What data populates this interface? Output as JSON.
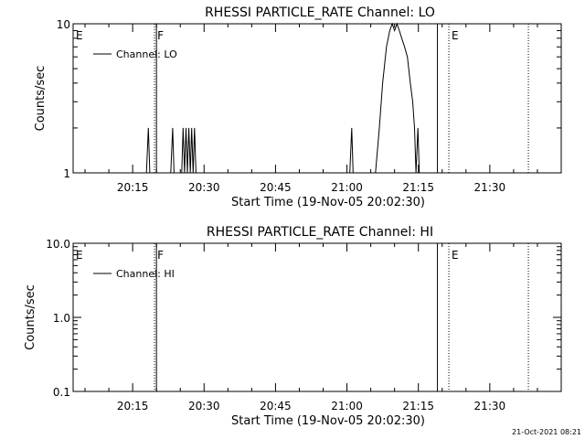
{
  "timestamp": "21-Oct-2021 08:21",
  "chart_data": [
    {
      "type": "line",
      "title": "RHESSI PARTICLE_RATE Channel: LO",
      "xlabel": "Start Time (19-Nov-05 20:02:30)",
      "ylabel": "Counts/sec",
      "x_unit": "minutes since 20:02:30",
      "xlim": [
        0,
        102.5
      ],
      "ylim": [
        1,
        10
      ],
      "yscale": "log",
      "x_ticks": [
        {
          "x": 12.5,
          "label": "20:15"
        },
        {
          "x": 27.5,
          "label": "20:30"
        },
        {
          "x": 42.5,
          "label": "20:45"
        },
        {
          "x": 57.5,
          "label": "21:00"
        },
        {
          "x": 72.5,
          "label": "21:15"
        },
        {
          "x": 87.5,
          "label": "21:30"
        }
      ],
      "y_ticks": [
        {
          "y": 1,
          "label": "1"
        },
        {
          "y": 10,
          "label": "10"
        }
      ],
      "legend": {
        "label": "Channel: LO",
        "position": "top-left"
      },
      "markers": [
        {
          "x": 0,
          "label": "E",
          "style": "none"
        },
        {
          "x": 17.1,
          "label": "F",
          "style": "dotted"
        },
        {
          "x": 17.5,
          "label": "",
          "style": "solid"
        },
        {
          "x": 76.5,
          "label": "",
          "style": "solid"
        },
        {
          "x": 78.9,
          "label": "E",
          "style": "dotted"
        },
        {
          "x": 95.6,
          "label": "",
          "style": "dotted"
        }
      ],
      "series": [
        {
          "name": "Channel: LO",
          "points": [
            [
              0,
              1
            ],
            [
              15.4,
              1
            ],
            [
              15.8,
              2
            ],
            [
              16.1,
              1
            ],
            [
              20.5,
              1
            ],
            [
              20.9,
              2
            ],
            [
              21.2,
              1
            ],
            [
              22.8,
              1
            ],
            [
              23.1,
              2
            ],
            [
              23.4,
              1
            ],
            [
              23.7,
              2
            ],
            [
              24.0,
              1
            ],
            [
              24.3,
              2
            ],
            [
              24.6,
              1
            ],
            [
              24.9,
              2
            ],
            [
              25.2,
              1
            ],
            [
              25.5,
              2
            ],
            [
              25.8,
              1
            ],
            [
              58.1,
              1
            ],
            [
              58.5,
              2
            ],
            [
              58.8,
              1
            ],
            [
              63.5,
              1
            ],
            [
              64.3,
              2
            ],
            [
              65.0,
              4
            ],
            [
              65.8,
              7
            ],
            [
              66.5,
              9
            ],
            [
              67.0,
              10
            ],
            [
              67.5,
              9
            ],
            [
              68.0,
              10
            ],
            [
              68.5,
              9
            ],
            [
              69.0,
              8
            ],
            [
              69.6,
              7
            ],
            [
              70.2,
              6
            ],
            [
              70.8,
              4
            ],
            [
              71.3,
              3
            ],
            [
              71.7,
              2
            ],
            [
              72.0,
              1
            ],
            [
              72.4,
              2
            ],
            [
              72.7,
              1
            ],
            [
              102.5,
              1
            ]
          ]
        }
      ]
    },
    {
      "type": "line",
      "title": "RHESSI PARTICLE_RATE Channel: HI",
      "xlabel": "Start Time (19-Nov-05 20:02:30)",
      "ylabel": "Counts/sec",
      "x_unit": "minutes since 20:02:30",
      "xlim": [
        0,
        102.5
      ],
      "ylim": [
        0.1,
        10
      ],
      "yscale": "log",
      "x_ticks": [
        {
          "x": 12.5,
          "label": "20:15"
        },
        {
          "x": 27.5,
          "label": "20:30"
        },
        {
          "x": 42.5,
          "label": "20:45"
        },
        {
          "x": 57.5,
          "label": "21:00"
        },
        {
          "x": 72.5,
          "label": "21:15"
        },
        {
          "x": 87.5,
          "label": "21:30"
        }
      ],
      "y_ticks": [
        {
          "y": 0.1,
          "label": "0.1"
        },
        {
          "y": 1.0,
          "label": "1.0"
        },
        {
          "y": 10.0,
          "label": "10.0"
        }
      ],
      "legend": {
        "label": "Channel: HI",
        "position": "top-left"
      },
      "markers": [
        {
          "x": 0,
          "label": "E",
          "style": "none"
        },
        {
          "x": 17.1,
          "label": "F",
          "style": "dotted"
        },
        {
          "x": 17.5,
          "label": "",
          "style": "solid"
        },
        {
          "x": 76.5,
          "label": "",
          "style": "solid"
        },
        {
          "x": 78.9,
          "label": "E",
          "style": "dotted"
        },
        {
          "x": 95.6,
          "label": "",
          "style": "dotted"
        }
      ],
      "series": [
        {
          "name": "Channel: HI",
          "points": []
        }
      ]
    }
  ]
}
